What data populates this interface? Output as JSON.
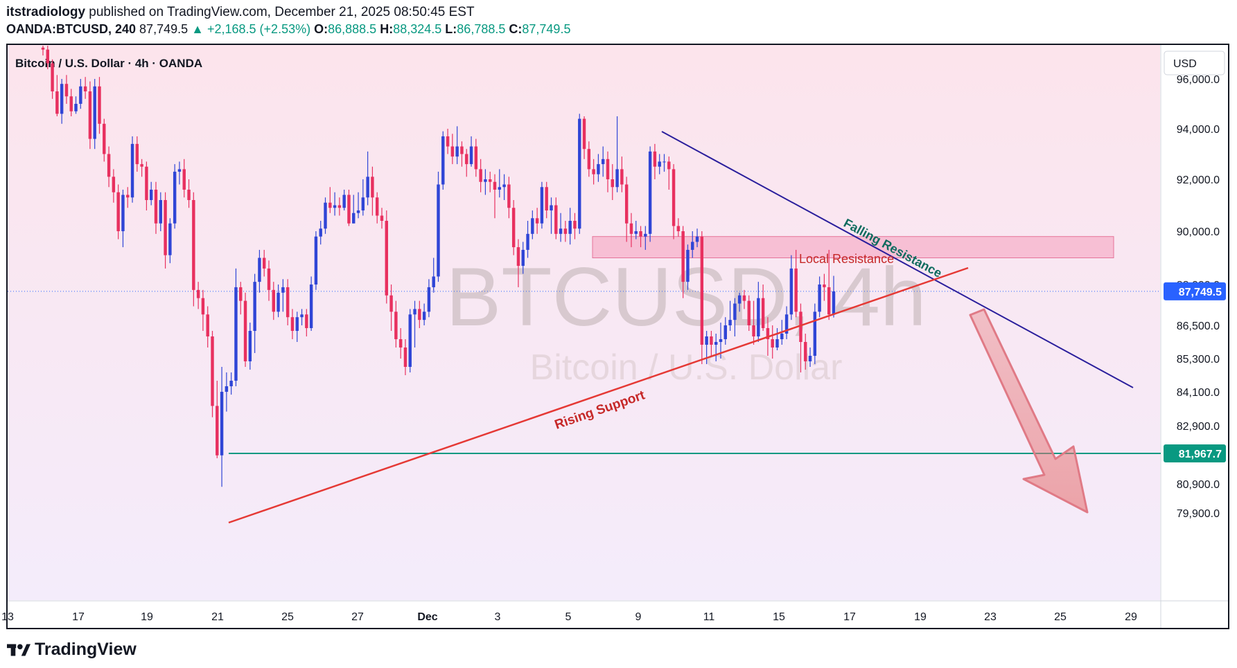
{
  "header": {
    "author": "itstradiology",
    "published_text": "published on TradingView.com, December 21, 2025 08:50:45 EST",
    "symbol": "OANDA:BTCUSD, 240",
    "last": "87,749.5",
    "change": "+2,168.5 (+2.53%)",
    "change_arrow": "▲",
    "o_label": "O:",
    "o_value": "86,888.5",
    "h_label": "H:",
    "h_value": "88,324.5",
    "l_label": "L:",
    "l_value": "86,788.5",
    "c_label": "C:",
    "c_value": "87,749.5"
  },
  "footer": {
    "brand": "TradingView"
  },
  "chart_data": {
    "type": "candlestick",
    "title": "Bitcoin / U.S. Dollar · 4h · OANDA",
    "watermark": {
      "line1": "BTCUSD, 4h",
      "line2": "Bitcoin / U.S. Dollar"
    },
    "currency_label": "USD",
    "y_ticks": [
      "96,000.0",
      "94,000.0",
      "92,000.0",
      "90,000.0",
      "88,000.0",
      "86,500.0",
      "85,300.0",
      "84,100.0",
      "82,900.0",
      "80,900.0",
      "79,900.0"
    ],
    "y_tick_values": [
      96000,
      94000,
      92000,
      90000,
      88000,
      86500,
      85300,
      84100,
      82900,
      80900,
      79900
    ],
    "x_ticks": [
      "13",
      "17",
      "19",
      "21",
      "25",
      "27",
      "Dec",
      "3",
      "5",
      "9",
      "11",
      "15",
      "17",
      "19",
      "23",
      "25",
      "29"
    ],
    "price_scale": "logarithmic-style (non-uniform)",
    "last_price": {
      "value": 87749.5,
      "label": "87,749.5",
      "color": "#2962ff"
    },
    "target_level": {
      "value": 81967.7,
      "label": "81,967.7",
      "color": "#089981"
    },
    "colors": {
      "up": "#2f45d6",
      "down": "#e8305f",
      "background_top": "#fce4ec",
      "background_bottom": "#f4ecfb"
    },
    "annotations": [
      {
        "text": "Falling Resistance",
        "color": "#0e6b5e"
      },
      {
        "text": "Rising Support",
        "color": "#c62828"
      },
      {
        "text": "Local Resistance",
        "color": "#c62828"
      }
    ],
    "zones": [
      {
        "name": "Local Resistance",
        "from": 89000,
        "to": 89800,
        "color": "#f48fb1"
      }
    ],
    "trendlines": [
      {
        "name": "Falling Resistance",
        "from": [
          "Dec 9",
          94600
        ],
        "to": [
          "Dec 22",
          86100
        ],
        "color": "#2a1e9c"
      },
      {
        "name": "Rising Support",
        "from": [
          "Nov 21",
          81800
        ],
        "to": [
          "Dec 21",
          89800
        ],
        "color": "#e53935"
      }
    ],
    "projection": {
      "from": 88000,
      "to": 81967.7,
      "direction": "down"
    },
    "candles": [
      [
        97600,
        97500,
        97900,
        97200
      ],
      [
        97500,
        96800,
        97700,
        96500
      ],
      [
        96800,
        95500,
        97000,
        95200
      ],
      [
        95500,
        94600,
        96200,
        94500
      ],
      [
        94600,
        95800,
        96000,
        94200
      ],
      [
        95800,
        95300,
        96200,
        95000
      ],
      [
        95300,
        94700,
        95600,
        94500
      ],
      [
        94700,
        95000,
        95300,
        94600
      ],
      [
        95000,
        95700,
        96000,
        94800
      ],
      [
        95700,
        95500,
        96100,
        95200
      ],
      [
        95500,
        93600,
        95900,
        93200
      ],
      [
        93600,
        95700,
        96000,
        93200
      ],
      [
        95700,
        94200,
        96100,
        93800
      ],
      [
        94200,
        93000,
        94400,
        92700
      ],
      [
        93000,
        92100,
        93300,
        91700
      ],
      [
        92100,
        91500,
        92400,
        91100
      ],
      [
        91500,
        90000,
        91800,
        89700
      ],
      [
        90000,
        91400,
        91600,
        89400
      ],
      [
        91400,
        91300,
        91700,
        90900
      ],
      [
        91300,
        93400,
        93700,
        91100
      ],
      [
        93400,
        92600,
        93700,
        92300
      ],
      [
        92600,
        92500,
        92800,
        92100
      ],
      [
        92500,
        91200,
        92700,
        90800
      ],
      [
        91200,
        91600,
        91900,
        91000
      ],
      [
        91600,
        90300,
        91900,
        89900
      ],
      [
        90300,
        91200,
        91500,
        90000
      ],
      [
        91200,
        89100,
        91500,
        88600
      ],
      [
        89100,
        90300,
        90500,
        88800
      ],
      [
        90300,
        92300,
        92600,
        90100
      ],
      [
        92300,
        92400,
        92700,
        91800
      ],
      [
        92400,
        91600,
        92800,
        91300
      ],
      [
        91600,
        91200,
        92000,
        90900
      ],
      [
        91200,
        87800,
        91500,
        87200
      ],
      [
        87800,
        87500,
        88100,
        87100
      ],
      [
        87500,
        86900,
        87800,
        86300
      ],
      [
        86900,
        86100,
        87200,
        85700
      ],
      [
        86100,
        83600,
        86300,
        83200
      ],
      [
        83600,
        81900,
        84500,
        81800
      ],
      [
        81900,
        84100,
        85000,
        80800
      ],
      [
        84100,
        84300,
        84800,
        83400
      ],
      [
        84300,
        84500,
        84800,
        84000
      ],
      [
        84500,
        87900,
        88600,
        84300
      ],
      [
        87900,
        87400,
        88100,
        86900
      ],
      [
        87400,
        85200,
        87700,
        85000
      ],
      [
        85200,
        86300,
        86600,
        84900
      ],
      [
        86300,
        88100,
        88400,
        85500
      ],
      [
        88100,
        89000,
        89300,
        87700
      ],
      [
        89000,
        88600,
        89300,
        88300
      ],
      [
        88600,
        87800,
        88900,
        87400
      ],
      [
        87800,
        87000,
        88100,
        86700
      ],
      [
        87000,
        87700,
        88000,
        86800
      ],
      [
        87700,
        87900,
        88200,
        87000
      ],
      [
        87900,
        86800,
        88200,
        86500
      ],
      [
        86800,
        86300,
        87100,
        86000
      ],
      [
        86300,
        86800,
        87000,
        85900
      ],
      [
        86800,
        86900,
        87100,
        86500
      ],
      [
        86900,
        86400,
        87100,
        86100
      ],
      [
        86400,
        88000,
        88300,
        86300
      ],
      [
        88000,
        89800,
        90000,
        87800
      ],
      [
        89800,
        90100,
        90400,
        89500
      ],
      [
        90100,
        91100,
        91300,
        89900
      ],
      [
        91100,
        90900,
        91700,
        90700
      ],
      [
        90900,
        91000,
        91500,
        90600
      ],
      [
        91000,
        90900,
        91300,
        90600
      ],
      [
        90900,
        91400,
        91600,
        90800
      ],
      [
        91400,
        90300,
        91600,
        90200
      ],
      [
        90300,
        90700,
        91400,
        90300
      ],
      [
        90700,
        90800,
        91500,
        90500
      ],
      [
        90800,
        91300,
        92000,
        90600
      ],
      [
        91300,
        92100,
        93100,
        91000
      ],
      [
        92100,
        91300,
        92500,
        90600
      ],
      [
        91300,
        90600,
        91500,
        90300
      ],
      [
        90600,
        90400,
        90900,
        90100
      ],
      [
        90400,
        87600,
        90800,
        87300
      ],
      [
        87600,
        87000,
        88000,
        86300
      ],
      [
        87000,
        86000,
        87400,
        85700
      ],
      [
        86000,
        85700,
        86400,
        85300
      ],
      [
        85700,
        85000,
        86000,
        84700
      ],
      [
        85000,
        86900,
        87100,
        84800
      ],
      [
        86900,
        87100,
        87400,
        85700
      ],
      [
        87100,
        86700,
        87400,
        86400
      ],
      [
        86700,
        87000,
        87300,
        86500
      ],
      [
        87000,
        87900,
        88200,
        86800
      ],
      [
        87900,
        88300,
        89000,
        87700
      ],
      [
        88300,
        91800,
        92300,
        88100
      ],
      [
        91800,
        93700,
        93900,
        91600
      ],
      [
        93700,
        93300,
        94000,
        93000
      ],
      [
        93300,
        92900,
        93800,
        92600
      ],
      [
        92900,
        93300,
        94100,
        92600
      ],
      [
        93300,
        93000,
        93500,
        92500
      ],
      [
        93000,
        92600,
        93200,
        92100
      ],
      [
        92600,
        93300,
        93700,
        92500
      ],
      [
        93300,
        92400,
        93600,
        92100
      ],
      [
        92400,
        91900,
        92800,
        91500
      ],
      [
        91900,
        92000,
        92400,
        91400
      ],
      [
        92000,
        91900,
        92300,
        91500
      ],
      [
        91900,
        91600,
        92200,
        90500
      ],
      [
        91600,
        91700,
        92400,
        91300
      ],
      [
        91700,
        91800,
        92200,
        91200
      ],
      [
        91800,
        90900,
        92100,
        90500
      ],
      [
        90900,
        89400,
        91200,
        89100
      ],
      [
        89400,
        88700,
        89700,
        87900
      ],
      [
        88700,
        89300,
        89600,
        88400
      ],
      [
        89300,
        89900,
        90400,
        89000
      ],
      [
        89900,
        90500,
        90800,
        89700
      ],
      [
        90500,
        90300,
        90900,
        89900
      ],
      [
        90300,
        91700,
        91900,
        90100
      ],
      [
        91700,
        90800,
        91900,
        90500
      ],
      [
        90800,
        91000,
        91300,
        89900
      ],
      [
        91000,
        89900,
        91300,
        89700
      ],
      [
        89900,
        90100,
        90700,
        89600
      ],
      [
        90100,
        89900,
        90400,
        89600
      ],
      [
        89900,
        90400,
        90900,
        89500
      ],
      [
        90400,
        90100,
        90700,
        89700
      ],
      [
        90100,
        94400,
        94600,
        89900
      ],
      [
        94400,
        93200,
        94500,
        92800
      ],
      [
        93200,
        92400,
        93500,
        92100
      ],
      [
        92400,
        92200,
        92800,
        91800
      ],
      [
        92200,
        92600,
        93000,
        91900
      ],
      [
        92600,
        92800,
        93300,
        92100
      ],
      [
        92800,
        92000,
        93100,
        91500
      ],
      [
        92000,
        91700,
        92600,
        91200
      ],
      [
        91700,
        92400,
        94500,
        91500
      ],
      [
        92400,
        91800,
        92900,
        91500
      ],
      [
        91800,
        90300,
        92100,
        89600
      ],
      [
        90300,
        89900,
        90700,
        89400
      ],
      [
        89900,
        90000,
        90400,
        89700
      ],
      [
        90000,
        89800,
        90200,
        89400
      ],
      [
        89800,
        89900,
        90200,
        89300
      ],
      [
        89900,
        93100,
        93300,
        89600
      ],
      [
        93100,
        92500,
        93400,
        92000
      ],
      [
        92500,
        92700,
        93000,
        92200
      ],
      [
        92700,
        92700,
        93000,
        92300
      ],
      [
        92700,
        92400,
        92900,
        91600
      ],
      [
        92400,
        90200,
        92600,
        89700
      ],
      [
        90200,
        90000,
        90500,
        89800
      ],
      [
        90000,
        88100,
        90200,
        87500
      ],
      [
        88100,
        89300,
        89500,
        87800
      ],
      [
        89300,
        89600,
        90000,
        89000
      ],
      [
        89600,
        89800,
        90100,
        89400
      ],
      [
        89800,
        85800,
        90000,
        85100
      ],
      [
        85800,
        86100,
        86300,
        85100
      ],
      [
        86100,
        85800,
        86300,
        85400
      ],
      [
        85800,
        85900,
        86200,
        85200
      ],
      [
        85900,
        86000,
        86600,
        85300
      ],
      [
        86000,
        86500,
        86800,
        85800
      ],
      [
        86500,
        86700,
        87400,
        86300
      ],
      [
        86700,
        87300,
        87500,
        86100
      ],
      [
        87300,
        87600,
        87700,
        87000
      ],
      [
        87600,
        87400,
        87800,
        87100
      ],
      [
        87400,
        86500,
        87600,
        86300
      ],
      [
        86500,
        86100,
        87400,
        85800
      ],
      [
        86100,
        87500,
        88100,
        85900
      ],
      [
        87500,
        86400,
        88000,
        86300
      ],
      [
        86400,
        86000,
        86800,
        85400
      ],
      [
        86000,
        85700,
        86500,
        85300
      ],
      [
        85700,
        86000,
        86400,
        85600
      ],
      [
        86000,
        86200,
        86700,
        85800
      ],
      [
        86200,
        86900,
        87200,
        86000
      ],
      [
        86900,
        88600,
        89100,
        86700
      ],
      [
        88600,
        87000,
        89300,
        86800
      ],
      [
        87000,
        85900,
        87300,
        84800
      ],
      [
        85900,
        85200,
        86200,
        84900
      ],
      [
        85200,
        85400,
        85700,
        85000
      ],
      [
        85400,
        87000,
        87300,
        85100
      ],
      [
        87000,
        88000,
        88300,
        86800
      ],
      [
        88000,
        87900,
        88400,
        87400
      ],
      [
        87900,
        86900,
        89300,
        86700
      ],
      [
        86888.5,
        87749.5,
        88324.5,
        86788.5
      ]
    ]
  }
}
